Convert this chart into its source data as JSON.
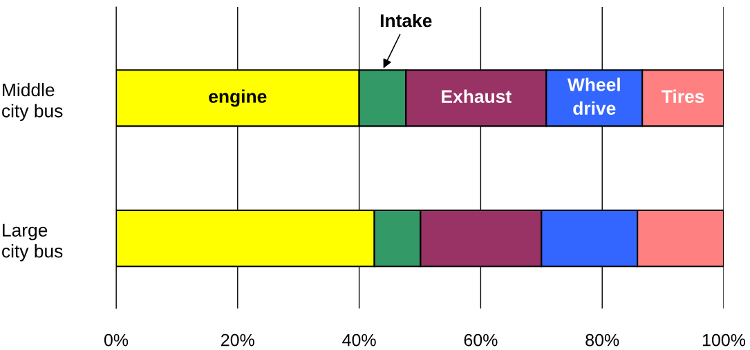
{
  "chart_data": {
    "type": "bar",
    "orientation": "horizontal",
    "stacked": true,
    "categories": [
      "Middle\ncity bus",
      "Large\ncity bus"
    ],
    "series": [
      {
        "name": "engine",
        "color": "#ffff00",
        "values": [
          40,
          42.5
        ]
      },
      {
        "name": "Intake",
        "color": "#339966",
        "values": [
          7.7,
          7.6
        ]
      },
      {
        "name": "Exhaust",
        "color": "#993366",
        "values": [
          23.1,
          19.9
        ]
      },
      {
        "name": "Wheel\ndrive",
        "color": "#3366ff",
        "values": [
          15.8,
          15.8
        ]
      },
      {
        "name": "Tires",
        "color": "#ff8080",
        "values": [
          13.4,
          14.2
        ]
      }
    ],
    "xlim": [
      0,
      100
    ],
    "xticks": [
      {
        "value": 0,
        "label": "0%"
      },
      {
        "value": 20,
        "label": "20%"
      },
      {
        "value": 40,
        "label": "40%"
      },
      {
        "value": 60,
        "label": "60%"
      },
      {
        "value": 80,
        "label": "80%"
      },
      {
        "value": 100,
        "label": "100%"
      }
    ],
    "grid": "x",
    "legend": false
  }
}
